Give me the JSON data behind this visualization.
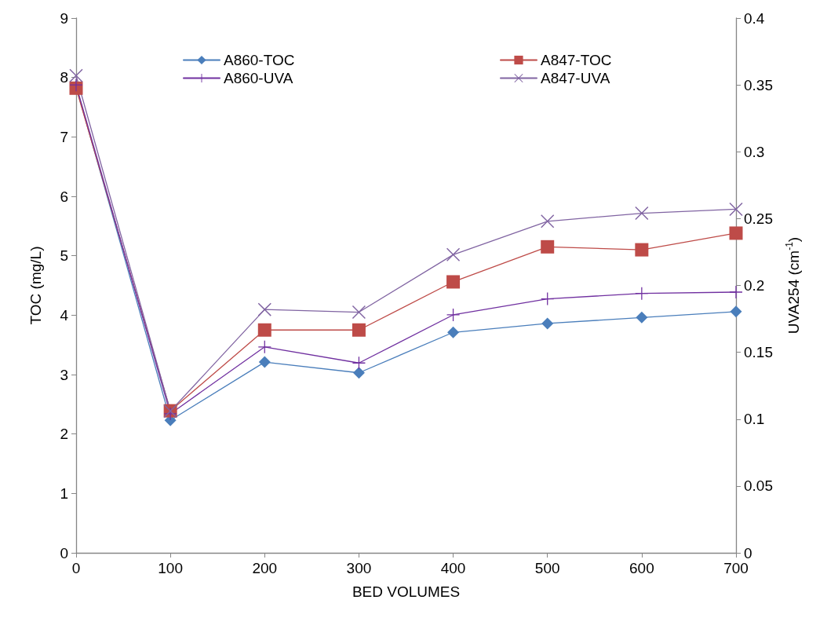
{
  "chart_data": {
    "type": "line",
    "xlabel": "BED VOLUMES",
    "ylabel": "TOC (mg/L)",
    "y2label": "UVA254 (cm$^{-1}$)",
    "x": [
      0,
      100,
      200,
      300,
      400,
      500,
      600,
      700
    ],
    "xlim": [
      0,
      700
    ],
    "xticks": [
      0,
      100,
      200,
      300,
      400,
      500,
      600,
      700
    ],
    "ylim": [
      0,
      9
    ],
    "yticks": [
      0,
      1,
      2,
      3,
      4,
      5,
      6,
      7,
      8,
      9
    ],
    "y2lim": [
      0,
      0.4
    ],
    "y2ticks": [
      0,
      0.05,
      0.1,
      0.15,
      0.2,
      0.25,
      0.3,
      0.35,
      0.4
    ],
    "grid": false,
    "legend": "top",
    "line_style": "solid",
    "series": [
      {
        "name": "A860-TOC",
        "color": "#4a7ebb",
        "marker": "diamond",
        "values": [
          7.85,
          2.23,
          3.21,
          3.03,
          3.71,
          3.86,
          3.96,
          4.06
        ]
      },
      {
        "name": "A847-TOC",
        "color": "#be4b48",
        "marker": "square",
        "values": [
          7.82,
          2.39,
          3.75,
          3.75,
          4.56,
          5.15,
          5.1,
          5.38
        ]
      },
      {
        "name": "A860-UVA",
        "color": "#7030a0",
        "marker": "cross",
        "axis": "y2",
        "values": [
          0.35,
          0.104,
          0.154,
          0.142,
          0.178,
          0.19,
          0.194,
          0.195
        ]
      },
      {
        "name": "A847-UVA",
        "color": "#8064a2",
        "marker": "x",
        "axis": "y2",
        "values": [
          0.357,
          0.106,
          0.182,
          0.18,
          0.223,
          0.248,
          0.254,
          0.257
        ]
      }
    ]
  }
}
